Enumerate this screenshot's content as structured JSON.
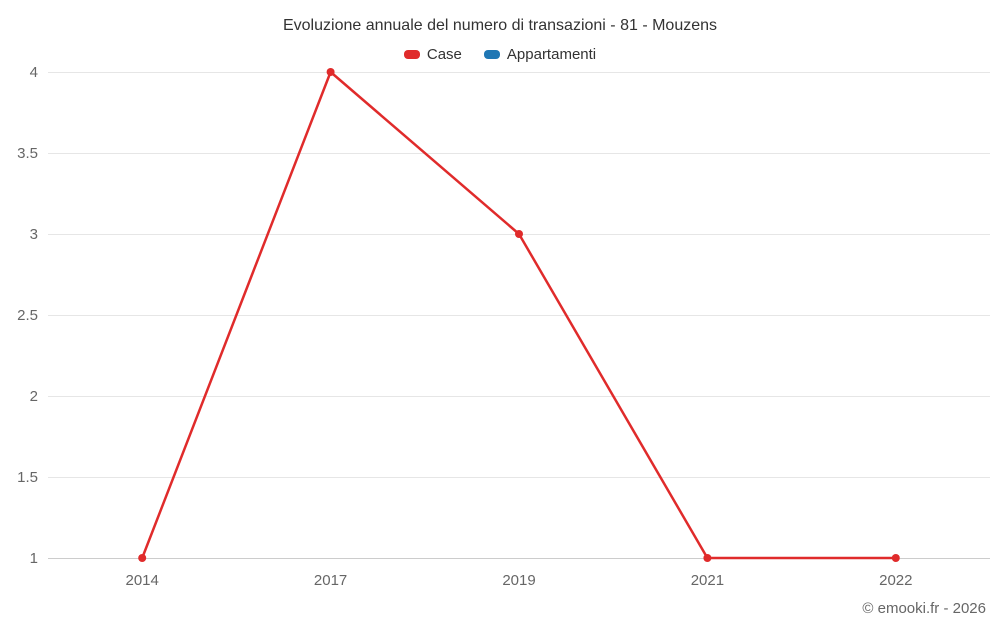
{
  "title": "Evoluzione annuale del numero di transazioni - 81 - Mouzens",
  "footer": "© emooki.fr - 2026",
  "colors": {
    "grid": "#e6e6e6",
    "axis_line": "#cccccc",
    "tick_label": "#666666",
    "title_text": "#333333"
  },
  "chart_data": {
    "type": "line",
    "title": "Evoluzione annuale del numero di transazioni - 81 - Mouzens",
    "categories": [
      "2014",
      "2017",
      "2019",
      "2021",
      "2022"
    ],
    "series": [
      {
        "name": "Case",
        "color": "#e02b2b",
        "values": [
          1,
          4,
          3,
          1,
          1
        ]
      },
      {
        "name": "Appartamenti",
        "color": "#1f77b4",
        "values": []
      }
    ],
    "xlabel": "",
    "ylabel": "",
    "ylim": [
      1,
      4
    ],
    "yticks": [
      1,
      1.5,
      2,
      2.5,
      3,
      3.5,
      4
    ],
    "grid": true,
    "legend_position": "top",
    "marker": "circle"
  }
}
